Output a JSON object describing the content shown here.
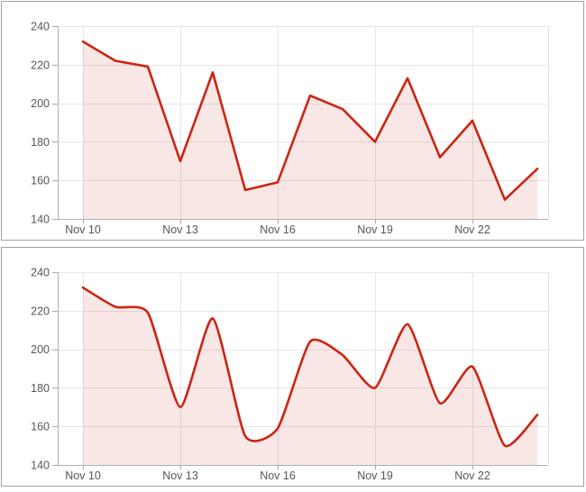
{
  "colors": {
    "line": "#cc2413",
    "fill": "rgba(204,36,19,0.11)",
    "grid": "#e7e7e7",
    "plot_border": "#e0e0e0",
    "axis": "#b0b0b0",
    "tick": "#a8a8a8",
    "label": "#55565a",
    "panel_border": "#a3a3a3",
    "background": "#ffffff"
  },
  "chart_data": [
    {
      "type": "area",
      "interpolation": "linear",
      "title": "",
      "xlabel": "",
      "ylabel": "",
      "x": [
        "Nov 10",
        "Nov 11",
        "Nov 12",
        "Nov 13",
        "Nov 14",
        "Nov 15",
        "Nov 16",
        "Nov 17",
        "Nov 18",
        "Nov 19",
        "Nov 20",
        "Nov 21",
        "Nov 22",
        "Nov 23",
        "Nov 24"
      ],
      "values": [
        232,
        222,
        219,
        170,
        216,
        155,
        159,
        204,
        197,
        180,
        213,
        172,
        191,
        150,
        166
      ],
      "x_tick_labels": [
        "Nov 10",
        "Nov 13",
        "Nov 16",
        "Nov 19",
        "Nov 22"
      ],
      "x_tick_day_indices": [
        0,
        3,
        6,
        9,
        12
      ],
      "y_ticks": [
        140,
        160,
        180,
        200,
        220,
        240
      ],
      "ylim": [
        140,
        240
      ],
      "grid": true,
      "legend": false
    },
    {
      "type": "area",
      "interpolation": "smooth",
      "title": "",
      "xlabel": "",
      "ylabel": "",
      "x": [
        "Nov 10",
        "Nov 11",
        "Nov 12",
        "Nov 13",
        "Nov 14",
        "Nov 15",
        "Nov 16",
        "Nov 17",
        "Nov 18",
        "Nov 19",
        "Nov 20",
        "Nov 21",
        "Nov 22",
        "Nov 23",
        "Nov 24"
      ],
      "values": [
        232,
        222,
        219,
        170,
        216,
        155,
        159,
        204,
        197,
        180,
        213,
        172,
        191,
        150,
        166
      ],
      "x_tick_labels": [
        "Nov 10",
        "Nov 13",
        "Nov 16",
        "Nov 19",
        "Nov 22"
      ],
      "x_tick_day_indices": [
        0,
        3,
        6,
        9,
        12
      ],
      "y_ticks": [
        140,
        160,
        180,
        200,
        220,
        240
      ],
      "ylim": [
        140,
        240
      ],
      "grid": true,
      "legend": false
    }
  ]
}
